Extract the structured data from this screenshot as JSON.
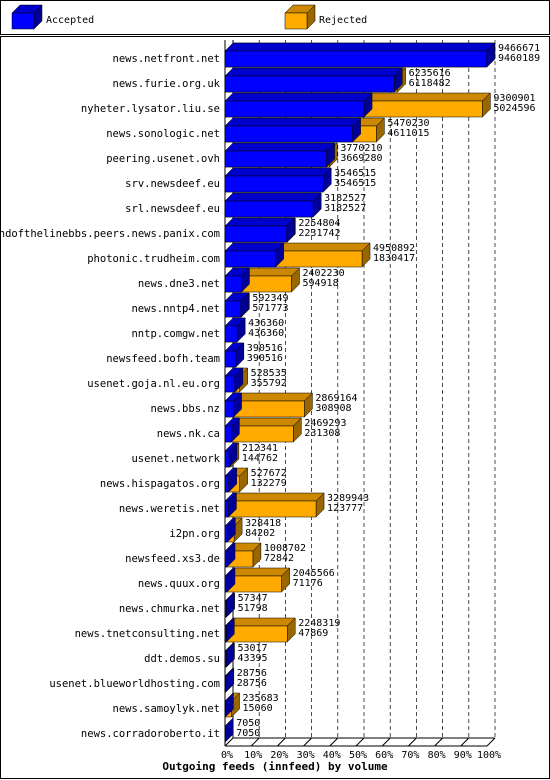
{
  "chart_data": {
    "type": "bar",
    "orientation": "horizontal",
    "title": "Outgoing feeds (innfeed) by volume",
    "categories": [
      "news.netfront.net",
      "news.furie.org.uk",
      "nyheter.lysator.liu.se",
      "news.sonologic.net",
      "peering.usenet.ovh",
      "srv.newsdeef.eu",
      "srl.newsdeef.eu",
      "endofthelinebbs.peers.news.panix.com",
      "photonic.trudheim.com",
      "news.dne3.net",
      "news.nntp4.net",
      "nntp.comgw.net",
      "newsfeed.bofh.team",
      "usenet.goja.nl.eu.org",
      "news.bbs.nz",
      "news.nk.ca",
      "usenet.network",
      "news.hispagatos.org",
      "news.weretis.net",
      "i2pn.org",
      "newsfeed.xs3.de",
      "news.quux.org",
      "news.chmurka.net",
      "news.tnetconsulting.net",
      "ddt.demos.su",
      "usenet.blueworldhosting.com",
      "news.samoylyk.net",
      "news.corradoroberto.it"
    ],
    "series": [
      {
        "name": "Accepted",
        "color": "#0000ff",
        "values": [
          9460189,
          6118482,
          5024596,
          4611015,
          3669280,
          3546515,
          3182527,
          2231742,
          1830417,
          594918,
          571773,
          436360,
          390516,
          355792,
          308908,
          231308,
          144762,
          132279,
          123777,
          84202,
          72842,
          71176,
          51798,
          47869,
          43395,
          28756,
          15060,
          7050
        ]
      },
      {
        "name": "Rejected",
        "color": "#ffaa00",
        "values": [
          9466671,
          6235616,
          9300901,
          5470230,
          3770210,
          3546515,
          3182527,
          2254804,
          4950892,
          2402230,
          592349,
          436360,
          390516,
          528535,
          2869164,
          2469293,
          212341,
          527672,
          3289943,
          328418,
          1008702,
          2045566,
          57347,
          2248319,
          53017,
          28756,
          235683,
          7050
        ]
      }
    ],
    "xlim": [
      0,
      9466671
    ],
    "xticks": [
      {
        "value": 0,
        "label": "0%"
      },
      {
        "value": 946667.1,
        "label": "10%"
      },
      {
        "value": 1893334.2,
        "label": "20%"
      },
      {
        "value": 2840001.3,
        "label": "30%"
      },
      {
        "value": 3786668.4,
        "label": "40%"
      },
      {
        "value": 4733335.5,
        "label": "50%"
      },
      {
        "value": 5680002.6,
        "label": "60%"
      },
      {
        "value": 6626669.7,
        "label": "70%"
      },
      {
        "value": 7573336.8,
        "label": "80%"
      },
      {
        "value": 8520003.9,
        "label": "90%"
      },
      {
        "value": 9466671,
        "label": "100%"
      }
    ],
    "grid": true
  }
}
